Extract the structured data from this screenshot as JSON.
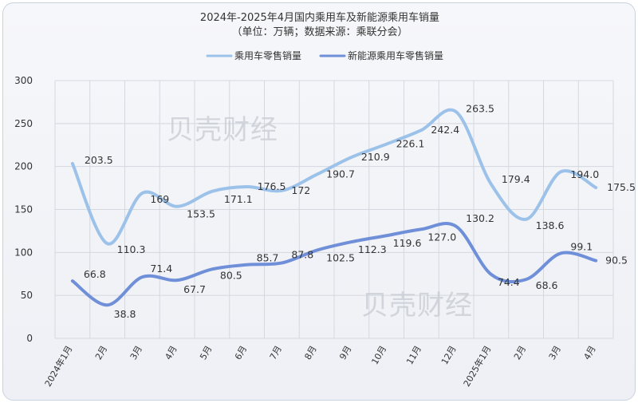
{
  "chart_data": {
    "type": "line",
    "title": "2024年-2025年4月国内乘用车及新能源乘用车销量",
    "subtitle": "（单位：万辆；数据来源：乘联分会）",
    "xlabel": "",
    "ylabel": "",
    "ylim": [
      0,
      300
    ],
    "yticks": [
      "0",
      "50",
      "100",
      "150",
      "200",
      "250",
      "300"
    ],
    "grid": true,
    "legend_position": "top-center",
    "categories": [
      "2024年1月",
      "2月",
      "3月",
      "4月",
      "5月",
      "6月",
      "7月",
      "8月",
      "9月",
      "10月",
      "11月",
      "12月",
      "2025年1月",
      "2月",
      "3月",
      "4月"
    ],
    "series": [
      {
        "name": "乘用车零售销量",
        "color": "#9cc2ea",
        "values": [
          203.5,
          110.3,
          169,
          153.5,
          171.1,
          176.5,
          172,
          190.7,
          210.9,
          226.1,
          242.4,
          263.5,
          179.4,
          138.6,
          194.0,
          175.5
        ],
        "labels": [
          "203.5",
          "110.3",
          "169",
          "153.5",
          "171.1",
          "176.5",
          "172",
          "190.7",
          "210.9",
          "226.1",
          "242.4",
          "263.5",
          "179.4",
          "138.6",
          "194.0",
          "175.5"
        ]
      },
      {
        "name": "新能源乘用车零售销量",
        "color": "#6f8fd8",
        "values": [
          66.8,
          38.8,
          71.4,
          67.7,
          80.5,
          85.7,
          87.8,
          102.5,
          112.3,
          119.6,
          127.0,
          130.2,
          74.4,
          68.6,
          99.1,
          90.5
        ],
        "labels": [
          "66.8",
          "38.8",
          "71.4",
          "67.7",
          "80.5",
          "85.7",
          "87.8",
          "102.5",
          "112.3",
          "119.6",
          "127.0",
          "130.2",
          "74.4",
          "68.6",
          "99.1",
          "90.5"
        ]
      }
    ],
    "watermark": "贝壳财经"
  }
}
